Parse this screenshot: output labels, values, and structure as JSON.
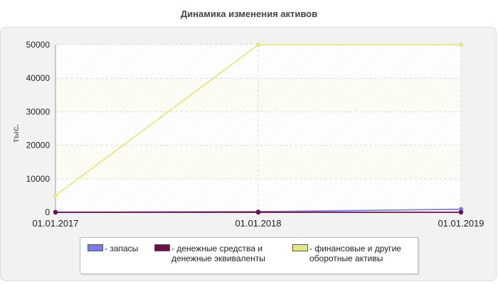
{
  "title": "Динамика изменения активов",
  "chart_data": {
    "type": "line",
    "title": "Динамика изменения активов",
    "xlabel": "",
    "ylabel": "тыс.",
    "categories": [
      "01.01.2017",
      "01.01.2018",
      "01.01.2019"
    ],
    "ylim": [
      0,
      50000
    ],
    "yticks": [
      "0",
      "10000",
      "20000",
      "30000",
      "40000",
      "50000"
    ],
    "grid": true,
    "legend_position": "bottom",
    "series": [
      {
        "name": "- запасы",
        "label_lines": [
          "- запасы"
        ],
        "color": "#7b7be8",
        "values": [
          0,
          200,
          900
        ]
      },
      {
        "name": "- денежные средства и денежные эквиваленты",
        "label_lines": [
          "- денежные средства и",
          "денежные эквиваленты"
        ],
        "color": "#6b1148",
        "values": [
          0,
          0,
          0
        ]
      },
      {
        "name": "- финансовые и другие оборотные активы",
        "label_lines": [
          "- финансовые и другие",
          "оборотные активы"
        ],
        "color": "#e6e68a",
        "values": [
          5000,
          50000,
          50000
        ]
      }
    ]
  }
}
